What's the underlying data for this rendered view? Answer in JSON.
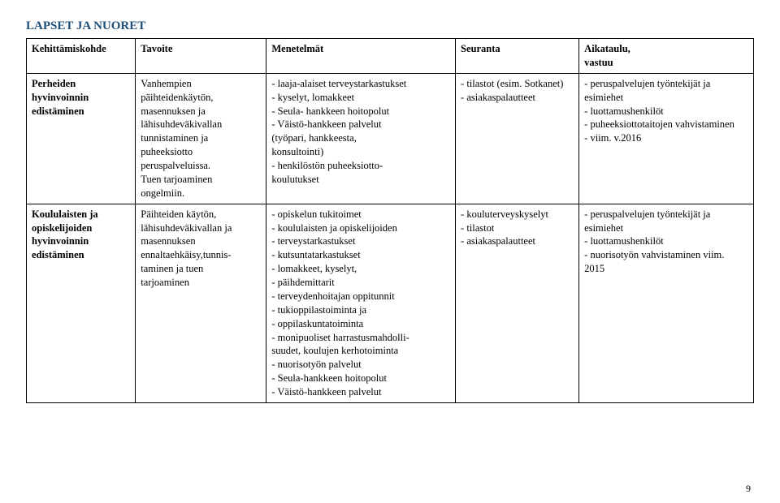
{
  "heading": "LAPSET JA NUORET",
  "columns": {
    "widths": [
      "15%",
      "18%",
      "26%",
      "17%",
      "24%"
    ],
    "headers": [
      "Kehittämiskohde",
      "Tavoite",
      "Menetelmät",
      "Seuranta",
      "Aikataulu,\nvastuu"
    ]
  },
  "rows": [
    {
      "label": "Perheiden\nhyvinvoinnin\nedistäminen",
      "tavoite": "Vanhempien\npäihteidenkäytön,\nmasennuksen ja\nlähisuhdeväkivallan\ntunnistaminen ja\npuheeksiotto\nperuspalveluissa.\nTuen tarjoaminen\nongelmiin.",
      "menetelmat": "- laaja-alaiset terveystarkastukset\n- kyselyt, lomakkeet\n- Seula- hankkeen hoitopolut\n- Väistö-hankkeen palvelut\n  (työpari, hankkeesta,\n  konsultointi)\n- henkilöstön puheeksiotto-\n  koulutukset",
      "seuranta": "- tilastot (esim. Sotkanet)\n- asiakaspalautteet",
      "aikataulu": "- peruspalvelujen työntekijät ja\n  esimiehet\n- luottamushenkilöt\n- puheeksiottotaitojen vahvistaminen\n- viim. v.2016"
    },
    {
      "label": "Koululaisten ja\nopiskelijoiden\nhyvinvoinnin\nedistäminen",
      "tavoite": "Päihteiden käytön,\nlähisuhdeväkivallan ja\nmasennuksen\nennaltaehkäisy,tunnis-\ntaminen ja tuen\ntarjoaminen",
      "menetelmat": "- opiskelun tukitoimet\n- koululaisten ja opiskelijoiden\n- terveystarkastukset\n- kutsuntatarkastukset\n- lomakkeet, kyselyt,\n- päihdemittarit\n- terveydenhoitajan oppitunnit\n- tukioppilastoiminta ja\n- oppilaskuntatoiminta\n- monipuoliset harrastusmahdolli-\n  suudet, koulujen kerhotoiminta\n- nuorisotyön palvelut\n- Seula-hankkeen hoitopolut\n- Väistö-hankkeen palvelut",
      "seuranta": "- kouluterveyskyselyt\n- tilastot\n- asiakaspalautteet",
      "aikataulu": "- peruspalvelujen työntekijät ja\n  esimiehet\n- luottamushenkilöt\n- nuorisotyön vahvistaminen viim.\n  2015"
    }
  ],
  "page_number": "9",
  "colors": {
    "heading": "#1f4e79",
    "text": "#000000",
    "background": "#ffffff",
    "border": "#000000"
  }
}
